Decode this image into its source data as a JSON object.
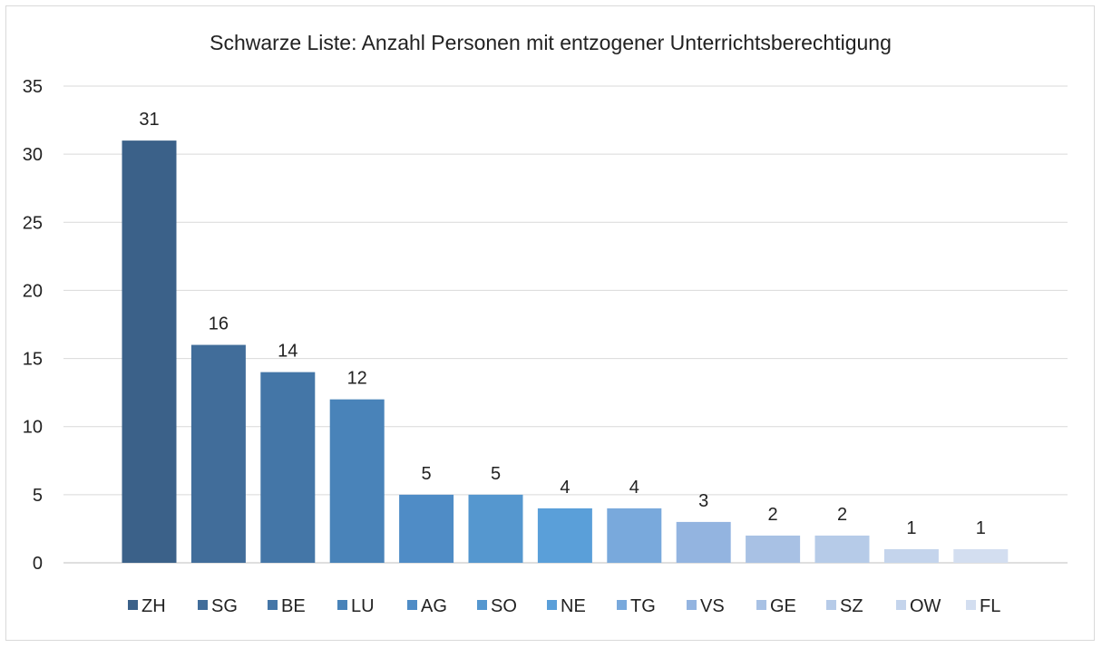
{
  "chart_data": {
    "type": "bar",
    "title": "Schwarze Liste: Anzahl Personen mit entzogener Unterrichtsberechtigung",
    "categories": [
      "ZH",
      "SG",
      "BE",
      "LU",
      "AG",
      "SO",
      "NE",
      "TG",
      "VS",
      "GE",
      "SZ",
      "OW",
      "FL"
    ],
    "values": [
      31,
      16,
      14,
      12,
      5,
      5,
      4,
      4,
      3,
      2,
      2,
      1,
      1
    ],
    "colors": [
      "#3b6189",
      "#416d9a",
      "#4476a7",
      "#4983b9",
      "#4f8cc6",
      "#5597cf",
      "#5a9fd9",
      "#79a9dc",
      "#93b4e0",
      "#a8c1e4",
      "#b6cbe8",
      "#c4d4ec",
      "#d3def0"
    ],
    "ylim": [
      0,
      35
    ],
    "yticks": [
      0,
      5,
      10,
      15,
      20,
      25,
      30,
      35
    ],
    "grid": true,
    "legend_position": "bottom",
    "data_labels": true
  }
}
